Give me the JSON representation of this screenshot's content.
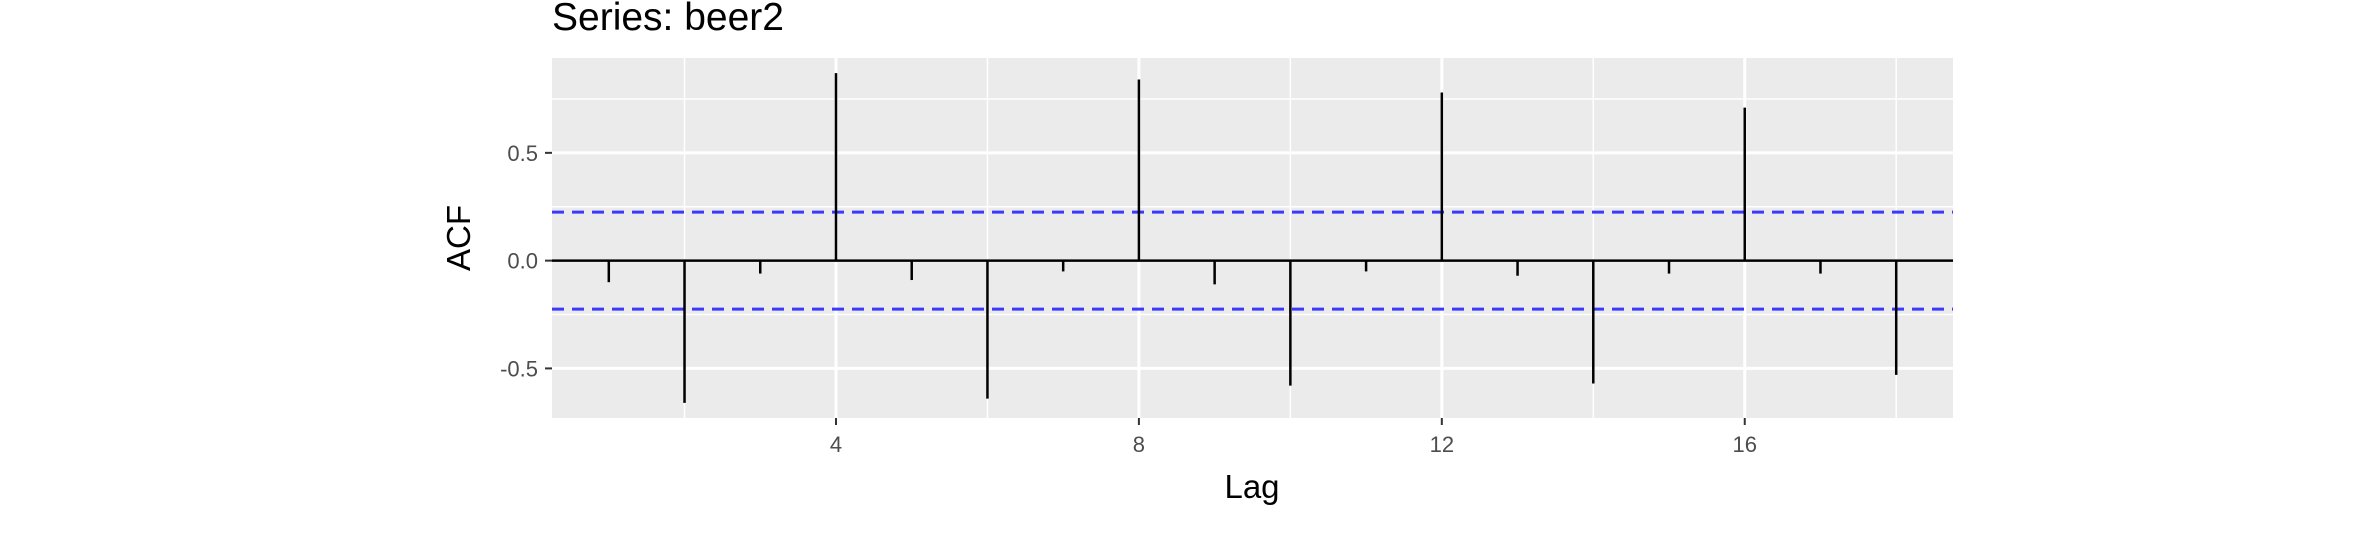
{
  "chart_data": {
    "type": "bar",
    "title": "Series: beer2",
    "xlabel": "Lag",
    "ylabel": "ACF",
    "x": [
      1,
      2,
      3,
      4,
      5,
      6,
      7,
      8,
      9,
      10,
      11,
      12,
      13,
      14,
      15,
      16,
      17,
      18
    ],
    "values": [
      -0.1,
      -0.66,
      -0.06,
      0.87,
      -0.09,
      -0.64,
      -0.05,
      0.84,
      -0.11,
      -0.58,
      -0.05,
      0.78,
      -0.07,
      -0.57,
      -0.06,
      0.71,
      -0.06,
      -0.53
    ],
    "xlim": [
      0.25,
      18.75
    ],
    "ylim": [
      -0.73,
      0.94
    ],
    "xticks": [
      4,
      8,
      12,
      16
    ],
    "xtick_labels": [
      "4",
      "8",
      "12",
      "16"
    ],
    "yticks": [
      -0.5,
      0.0,
      0.5
    ],
    "ytick_labels": [
      "-0.5",
      "0.0",
      "0.5"
    ],
    "confidence_bounds": [
      0.225,
      -0.225
    ],
    "grid": true,
    "colors": {
      "panel": "#ebebeb",
      "grid": "#ffffff",
      "bars": "#000000",
      "confidence": "#3a3aff",
      "zero_line": "#000000"
    }
  }
}
